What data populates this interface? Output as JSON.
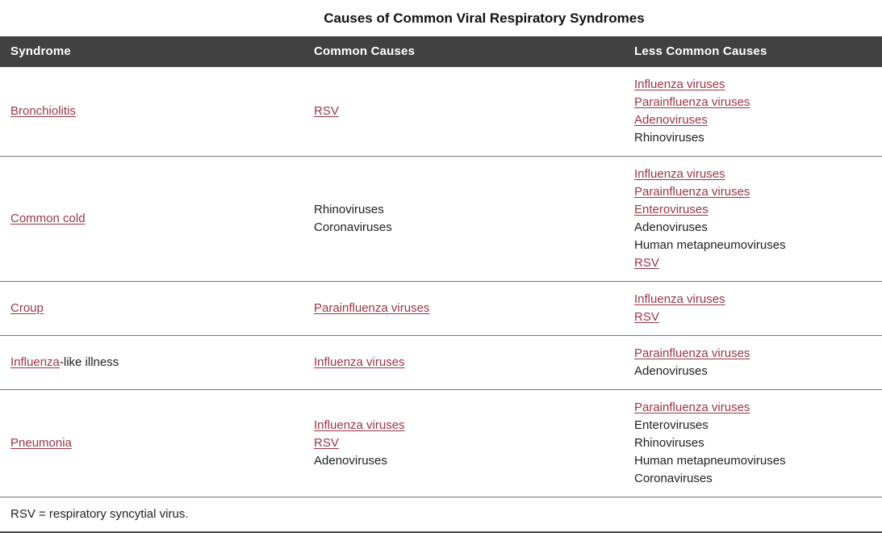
{
  "title": "Causes of Common Viral Respiratory Syndromes",
  "colors": {
    "link": "#9a3543",
    "header_bg": "#414141",
    "header_text": "#ffffff"
  },
  "table": {
    "headers": [
      "Syndrome",
      "Common Causes",
      "Less Common Causes"
    ],
    "rows": [
      {
        "syndrome": [
          {
            "text": "Bronchiolitis",
            "link": true
          }
        ],
        "common": [
          {
            "text": "RSV",
            "link": true
          }
        ],
        "less_common": [
          {
            "text": "Influenza viruses",
            "link": true
          },
          {
            "text": "Parainfluenza viruses",
            "link": true
          },
          {
            "text": "Adenoviruses",
            "link": true
          },
          {
            "text": "Rhinoviruses",
            "link": false
          }
        ]
      },
      {
        "syndrome": [
          {
            "text": "Common cold",
            "link": true
          }
        ],
        "common": [
          {
            "text": "Rhinoviruses",
            "link": false
          },
          {
            "text": "Coronaviruses",
            "link": false
          }
        ],
        "less_common": [
          {
            "text": "Influenza viruses",
            "link": true
          },
          {
            "text": "Parainfluenza viruses",
            "link": true
          },
          {
            "text": "Enteroviruses",
            "link": true
          },
          {
            "text": "Adenoviruses",
            "link": false
          },
          {
            "text": "Human metapneumoviruses",
            "link": false
          },
          {
            "text": "RSV",
            "link": true
          }
        ]
      },
      {
        "syndrome": [
          {
            "text": "Croup",
            "link": true
          }
        ],
        "common": [
          {
            "text": "Parainfluenza viruses",
            "link": true
          }
        ],
        "less_common": [
          {
            "text": "Influenza viruses",
            "link": true
          },
          {
            "text": "RSV",
            "link": true
          }
        ]
      },
      {
        "syndrome": [
          {
            "text": "Influenza",
            "link": true
          },
          {
            "text": "-like illness",
            "link": false
          }
        ],
        "common": [
          {
            "text": "Influenza viruses",
            "link": true
          }
        ],
        "less_common": [
          {
            "text": "Parainfluenza viruses",
            "link": true
          },
          {
            "text": "Adenoviruses",
            "link": false
          }
        ]
      },
      {
        "syndrome": [
          {
            "text": "Pneumonia",
            "link": true
          }
        ],
        "common": [
          {
            "text": "Influenza viruses",
            "link": true
          },
          {
            "text": "RSV",
            "link": true
          },
          {
            "text": "Adenoviruses",
            "link": false
          }
        ],
        "less_common": [
          {
            "text": "Parainfluenza viruses",
            "link": true
          },
          {
            "text": "Enteroviruses",
            "link": false
          },
          {
            "text": "Rhinoviruses",
            "link": false
          },
          {
            "text": "Human metapneumoviruses",
            "link": false
          },
          {
            "text": "Coronaviruses",
            "link": false
          }
        ]
      }
    ],
    "footnote": "RSV = respiratory syncytial virus."
  }
}
